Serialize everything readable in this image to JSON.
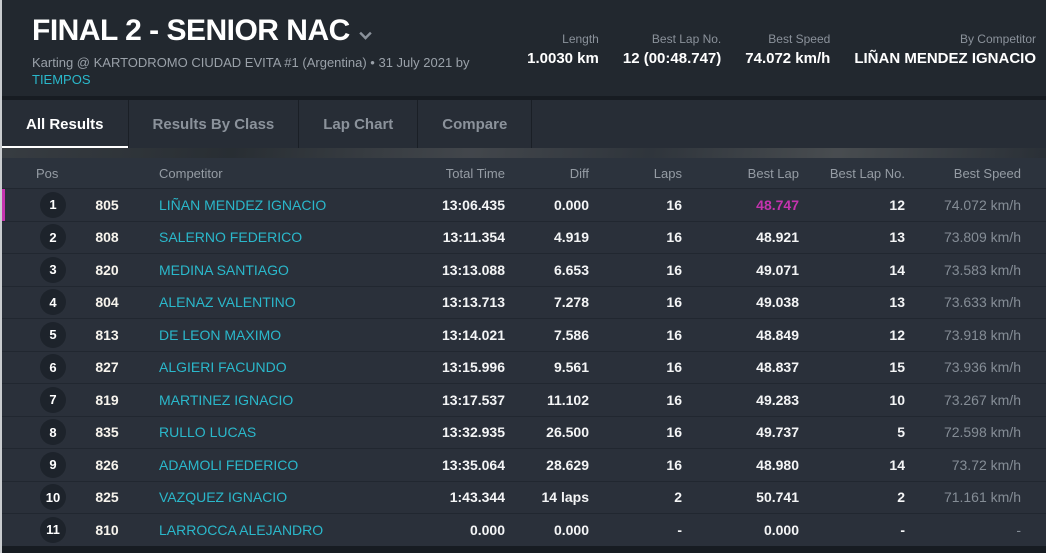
{
  "header": {
    "title": "FINAL 2 - SENIOR NAC",
    "subtitle": "Karting @ KARTODROMO CIUDAD EVITA #1 (Argentina) • 31 July 2021 by",
    "subtitle_link": "TIEMPOS",
    "stats": [
      {
        "label": "Length",
        "value": "1.0030 km"
      },
      {
        "label": "Best Lap No.",
        "value": "12 (00:48.747)"
      },
      {
        "label": "Best Speed",
        "value": "74.072 km/h"
      },
      {
        "label": "By Competitor",
        "value": "LIÑAN MENDEZ IGNACIO"
      }
    ]
  },
  "tabs": [
    {
      "label": "All Results",
      "active": true
    },
    {
      "label": "Results By Class",
      "active": false
    },
    {
      "label": "Lap Chart",
      "active": false
    },
    {
      "label": "Compare",
      "active": false
    }
  ],
  "table": {
    "columns": {
      "pos": "Pos",
      "competitor": "Competitor",
      "total_time": "Total Time",
      "diff": "Diff",
      "laps": "Laps",
      "best_lap": "Best Lap",
      "best_lap_no": "Best Lap No.",
      "best_speed": "Best Speed"
    },
    "rows": [
      {
        "pos": "1",
        "no": "805",
        "name": "LIÑAN MENDEZ IGNACIO",
        "total_time": "13:06.435",
        "diff": "0.000",
        "laps": "16",
        "best_lap": "48.747",
        "best_lap_no": "12",
        "best_speed": "74.072 km/h",
        "highlighted": true,
        "fastest_lap": true
      },
      {
        "pos": "2",
        "no": "808",
        "name": "SALERNO FEDERICO",
        "total_time": "13:11.354",
        "diff": "4.919",
        "laps": "16",
        "best_lap": "48.921",
        "best_lap_no": "13",
        "best_speed": "73.809 km/h",
        "highlighted": false,
        "fastest_lap": false
      },
      {
        "pos": "3",
        "no": "820",
        "name": "MEDINA SANTIAGO",
        "total_time": "13:13.088",
        "diff": "6.653",
        "laps": "16",
        "best_lap": "49.071",
        "best_lap_no": "14",
        "best_speed": "73.583 km/h",
        "highlighted": false,
        "fastest_lap": false
      },
      {
        "pos": "4",
        "no": "804",
        "name": "ALENAZ VALENTINO",
        "total_time": "13:13.713",
        "diff": "7.278",
        "laps": "16",
        "best_lap": "49.038",
        "best_lap_no": "13",
        "best_speed": "73.633 km/h",
        "highlighted": false,
        "fastest_lap": false
      },
      {
        "pos": "5",
        "no": "813",
        "name": "DE LEON MAXIMO",
        "total_time": "13:14.021",
        "diff": "7.586",
        "laps": "16",
        "best_lap": "48.849",
        "best_lap_no": "12",
        "best_speed": "73.918 km/h",
        "highlighted": false,
        "fastest_lap": false
      },
      {
        "pos": "6",
        "no": "827",
        "name": "ALGIERI FACUNDO",
        "total_time": "13:15.996",
        "diff": "9.561",
        "laps": "16",
        "best_lap": "48.837",
        "best_lap_no": "15",
        "best_speed": "73.936 km/h",
        "highlighted": false,
        "fastest_lap": false
      },
      {
        "pos": "7",
        "no": "819",
        "name": "MARTINEZ IGNACIO",
        "total_time": "13:17.537",
        "diff": "11.102",
        "laps": "16",
        "best_lap": "49.283",
        "best_lap_no": "10",
        "best_speed": "73.267 km/h",
        "highlighted": false,
        "fastest_lap": false
      },
      {
        "pos": "8",
        "no": "835",
        "name": "RULLO LUCAS",
        "total_time": "13:32.935",
        "diff": "26.500",
        "laps": "16",
        "best_lap": "49.737",
        "best_lap_no": "5",
        "best_speed": "72.598 km/h",
        "highlighted": false,
        "fastest_lap": false
      },
      {
        "pos": "9",
        "no": "826",
        "name": "ADAMOLI FEDERICO",
        "total_time": "13:35.064",
        "diff": "28.629",
        "laps": "16",
        "best_lap": "48.980",
        "best_lap_no": "14",
        "best_speed": "73.72 km/h",
        "highlighted": false,
        "fastest_lap": false
      },
      {
        "pos": "10",
        "no": "825",
        "name": "VAZQUEZ IGNACIO",
        "total_time": "1:43.344",
        "diff": "14 laps",
        "laps": "2",
        "best_lap": "50.741",
        "best_lap_no": "2",
        "best_speed": "71.161 km/h",
        "highlighted": false,
        "fastest_lap": false
      },
      {
        "pos": "11",
        "no": "810",
        "name": "LARROCCA ALEJANDRO",
        "total_time": "0.000",
        "diff": "0.000",
        "laps": "-",
        "best_lap": "0.000",
        "best_lap_no": "-",
        "best_speed": "-",
        "highlighted": false,
        "fastest_lap": false
      }
    ]
  },
  "colors": {
    "accent_teal": "#2ab8cb",
    "fastest_lap_magenta": "#c433ae",
    "highlight_border": "#c433ae",
    "row_background": "#2a303a",
    "header_background": "#22282f"
  }
}
